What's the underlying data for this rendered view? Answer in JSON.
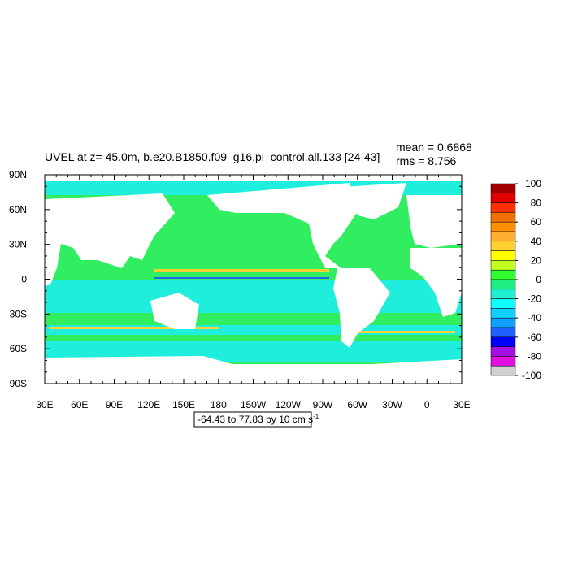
{
  "title": "UVEL at z=  45.0m, b.e20.B1850.f09_g16.pi_control.all.133 [24-43]",
  "mean": "mean = 0.6868",
  "rms": "rms = 8.756",
  "lon_labels": [
    "30E",
    "60E",
    "90E",
    "120E",
    "150E",
    "180",
    "150W",
    "120W",
    "90W",
    "60W",
    "30W",
    "0",
    "30E"
  ],
  "lat_labels": [
    "90N",
    "60N",
    "30N",
    "0",
    "30S",
    "60S",
    "90S"
  ],
  "colorbar": {
    "labels": [
      100,
      80,
      60,
      40,
      20,
      0,
      -20,
      -40,
      -60,
      -80,
      -100
    ],
    "colors": [
      "#a00000",
      "#e00000",
      "#ff3000",
      "#f07000",
      "#ff9000",
      "#ffb030",
      "#ffd030",
      "#ffff00",
      "#c0ff20",
      "#30ff30",
      "#20ee80",
      "#20f0d0",
      "#10ffff",
      "#10d0ff",
      "#10a0ff",
      "#2060ff",
      "#0000ff",
      "#a010e0",
      "#e010e0",
      "#d0d0d0"
    ]
  },
  "info": {
    "text": "-64.43 to 77.83 by 10 cm s",
    "superscript": "-1"
  }
}
